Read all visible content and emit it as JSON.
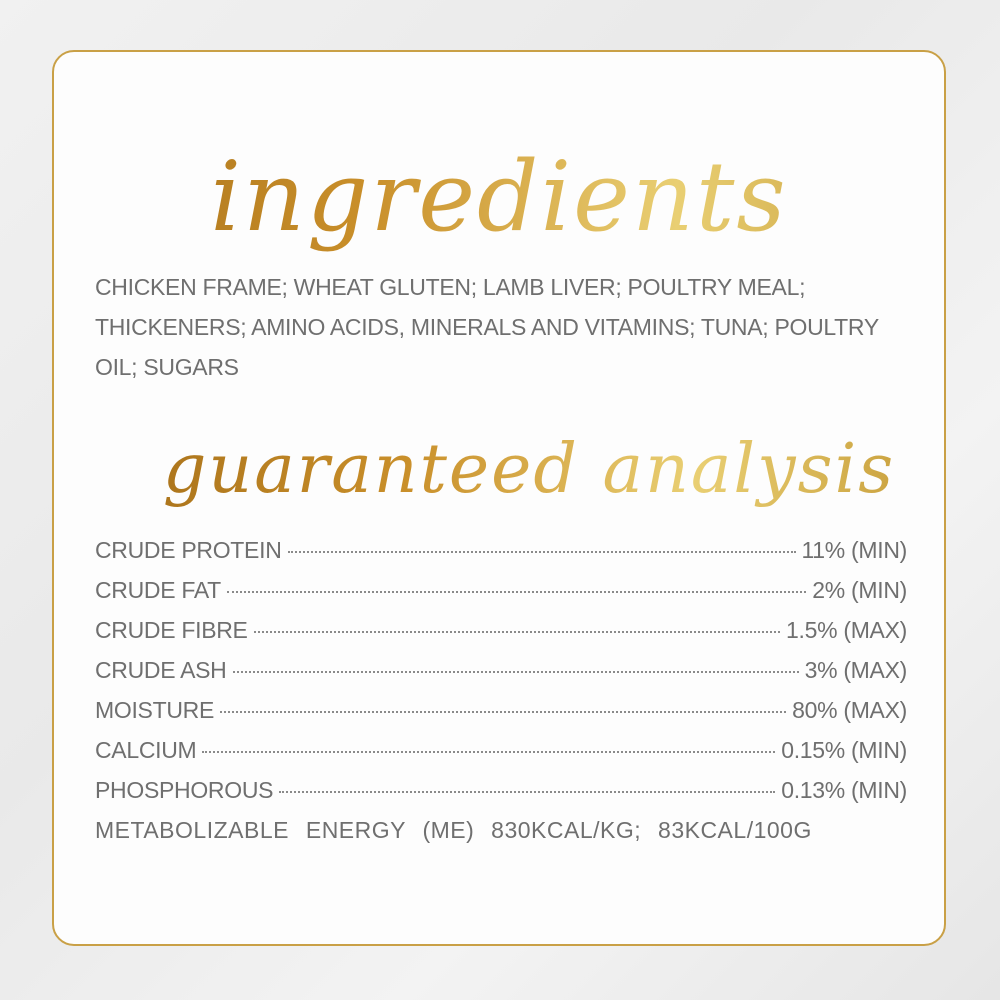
{
  "headings": {
    "ingredients": "ingredients",
    "analysis": "guaranteed analysis"
  },
  "ingredients_text": "CHICKEN FRAME; WHEAT GLUTEN; LAMB LIVER; POULTRY MEAL; THICKENERS; AMINO ACIDS, MINERALS AND VITAMINS; TUNA; POULTRY OIL; SUGARS",
  "analysis": [
    {
      "label": "CRUDE PROTEIN",
      "value": "11% (MIN)"
    },
    {
      "label": "CRUDE FAT",
      "value": "2% (MIN)"
    },
    {
      "label": "CRUDE FIBRE",
      "value": "1.5% (MAX)"
    },
    {
      "label": "CRUDE ASH",
      "value": "3% (MAX)"
    },
    {
      "label": "MOISTURE",
      "value": "80% (MAX)"
    },
    {
      "label": "CALCIUM",
      "value": "0.15% (MIN)"
    },
    {
      "label": "PHOSPHOROUS",
      "value": "0.13% (MIN)"
    }
  ],
  "energy": "METABOLIZABLE ENERGY (ME) 830KCAL/KG; 83KCAL/100G",
  "colors": {
    "gold": "#c9a046",
    "text": "#6f6f6f"
  }
}
